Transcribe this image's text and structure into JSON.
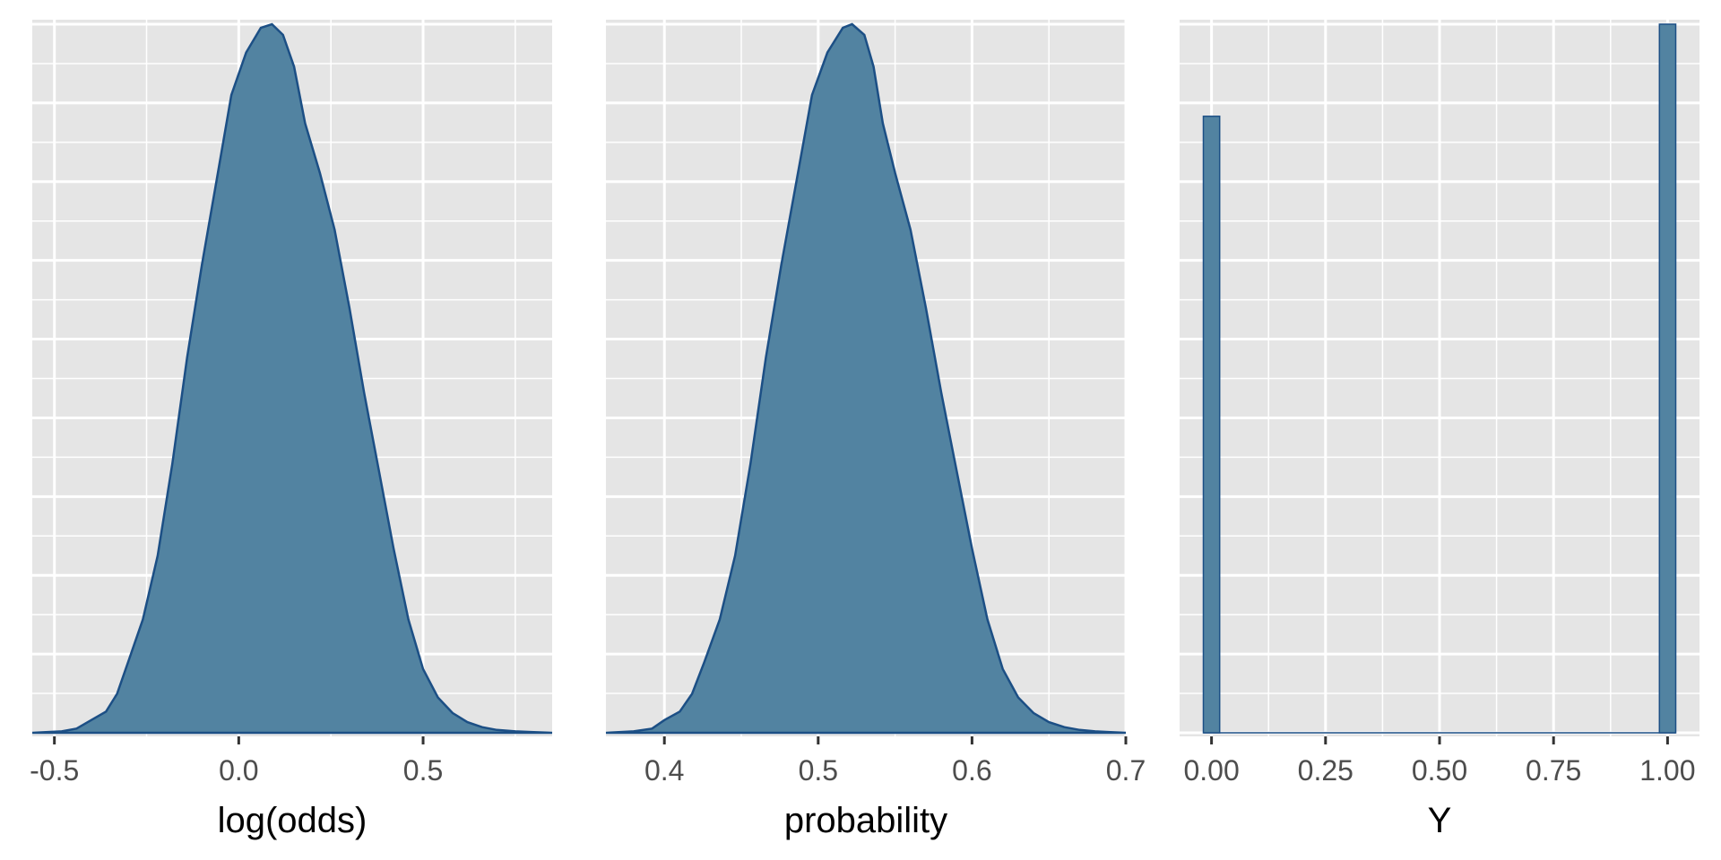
{
  "colors": {
    "fill": "#5283a1",
    "outline": "#1c4f85",
    "panel": "#e5e5e5",
    "grid": "#ffffff"
  },
  "chart_data": [
    {
      "type": "area",
      "title": "",
      "xlabel": "log(odds)",
      "ylabel": "",
      "xlim": [
        -0.56,
        0.85
      ],
      "ylim": [
        0,
        1
      ],
      "xticks": [
        -0.5,
        0.0,
        0.5
      ],
      "xtick_labels": [
        "-0.5",
        "0.0",
        "0.5"
      ],
      "grid": true,
      "x": [
        -0.56,
        -0.48,
        -0.44,
        -0.4,
        -0.36,
        -0.33,
        -0.3,
        -0.26,
        -0.22,
        -0.18,
        -0.14,
        -0.1,
        -0.06,
        -0.02,
        0.02,
        0.06,
        0.09,
        0.12,
        0.15,
        0.18,
        0.22,
        0.26,
        0.3,
        0.34,
        0.38,
        0.42,
        0.46,
        0.5,
        0.54,
        0.58,
        0.62,
        0.66,
        0.7,
        0.75,
        0.8,
        0.85
      ],
      "y": [
        0.0,
        0.002,
        0.006,
        0.018,
        0.03,
        0.055,
        0.1,
        0.16,
        0.25,
        0.38,
        0.53,
        0.66,
        0.78,
        0.9,
        0.96,
        0.995,
        1.0,
        0.985,
        0.94,
        0.86,
        0.79,
        0.71,
        0.6,
        0.48,
        0.37,
        0.26,
        0.16,
        0.09,
        0.05,
        0.028,
        0.015,
        0.008,
        0.004,
        0.002,
        0.001,
        0.0
      ]
    },
    {
      "type": "area",
      "title": "",
      "xlabel": "probability",
      "ylabel": "",
      "xlim": [
        0.362,
        0.7
      ],
      "ylim": [
        0,
        1
      ],
      "xticks": [
        0.4,
        0.5,
        0.6,
        0.7
      ],
      "xtick_labels": [
        "0.4",
        "0.5",
        "0.6",
        "0.7"
      ],
      "grid": true,
      "x": [
        0.362,
        0.38,
        0.392,
        0.4,
        0.41,
        0.418,
        0.426,
        0.436,
        0.446,
        0.456,
        0.466,
        0.476,
        0.486,
        0.496,
        0.506,
        0.516,
        0.522,
        0.53,
        0.536,
        0.542,
        0.55,
        0.56,
        0.57,
        0.58,
        0.59,
        0.6,
        0.61,
        0.62,
        0.63,
        0.64,
        0.65,
        0.66,
        0.67,
        0.68,
        0.69,
        0.7
      ],
      "y": [
        0.0,
        0.002,
        0.006,
        0.018,
        0.03,
        0.055,
        0.1,
        0.16,
        0.25,
        0.38,
        0.53,
        0.66,
        0.78,
        0.9,
        0.96,
        0.995,
        1.0,
        0.985,
        0.94,
        0.86,
        0.79,
        0.71,
        0.6,
        0.48,
        0.37,
        0.26,
        0.16,
        0.09,
        0.05,
        0.028,
        0.015,
        0.008,
        0.004,
        0.002,
        0.001,
        0.0
      ]
    },
    {
      "type": "bar",
      "title": "",
      "xlabel": "Y",
      "ylabel": "",
      "xlim": [
        -0.07,
        1.07
      ],
      "ylim": [
        0,
        1
      ],
      "xticks": [
        0.0,
        0.25,
        0.5,
        0.75,
        1.0
      ],
      "xtick_labels": [
        "0.00",
        "0.25",
        "0.50",
        "0.75",
        "1.00"
      ],
      "grid": true,
      "bin_width": 0.0357,
      "x": [
        0.0,
        1.0
      ],
      "values": [
        0.87,
        1.0
      ]
    }
  ]
}
